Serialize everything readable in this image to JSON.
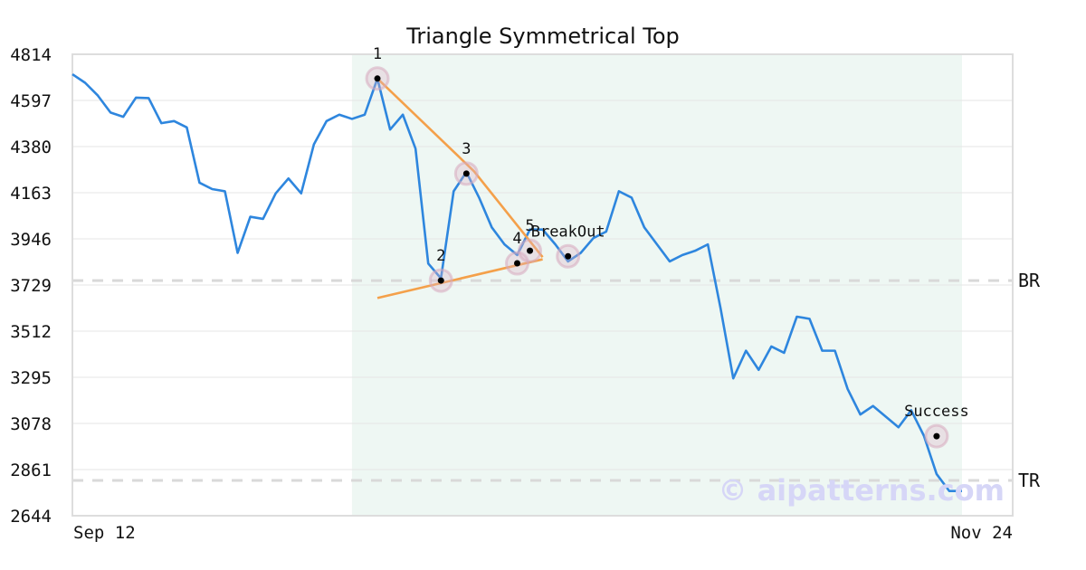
{
  "chart_data": {
    "type": "line",
    "title": "Triangle Symmetrical Top",
    "xlabel": "",
    "ylabel": "",
    "ylim": [
      2644,
      4814
    ],
    "y_ticks": [
      4814,
      4597,
      4380,
      4163,
      3946,
      3729,
      3512,
      3295,
      3078,
      2861,
      2644
    ],
    "x_tick_labels": [
      "Sep 12",
      "Nov 24"
    ],
    "grid": "horizontal",
    "series": [
      {
        "name": "",
        "color": "#2e86de",
        "x": [
          0,
          1,
          2,
          3,
          4,
          5,
          6,
          7,
          8,
          9,
          10,
          11,
          12,
          13,
          14,
          15,
          16,
          17,
          18,
          19,
          20,
          21,
          22,
          23,
          24,
          25,
          26,
          27,
          28,
          29,
          30,
          31,
          32,
          33,
          34,
          35,
          36,
          37,
          38,
          39,
          40,
          41,
          42,
          43,
          44,
          45,
          46,
          47,
          48,
          49,
          50,
          51,
          52,
          53,
          54,
          55,
          56,
          57,
          58,
          59,
          60,
          61,
          62,
          63,
          64,
          65,
          66,
          67,
          68,
          69,
          70
        ],
        "values": [
          4720,
          4680,
          4620,
          4540,
          4520,
          4610,
          4608,
          4490,
          4500,
          4470,
          4210,
          4180,
          4170,
          3880,
          4050,
          4040,
          4160,
          4230,
          4160,
          4390,
          4500,
          4530,
          4510,
          4530,
          4700,
          4460,
          4530,
          4370,
          3830,
          3760,
          4170,
          4260,
          4140,
          4000,
          3920,
          3870,
          3990,
          3990,
          3920,
          3840,
          3880,
          3950,
          3980,
          4170,
          4140,
          4000,
          3920,
          3840,
          3870,
          3890,
          3920,
          3620,
          3290,
          3420,
          3330,
          3440,
          3410,
          3580,
          3570,
          3420,
          3420,
          3240,
          3120,
          3160,
          3110,
          3060,
          3140,
          3020,
          2840,
          2760,
          2760
        ]
      }
    ],
    "shaded_region": {
      "x_start": 22,
      "x_end": 70,
      "color": "#eef7f3"
    },
    "trendlines": [
      {
        "color": "#f4a04a",
        "points": [
          [
            24,
            4700
          ],
          [
            31.6,
            4264
          ],
          [
            37,
            3860
          ]
        ]
      },
      {
        "color": "#f4a04a",
        "points": [
          [
            24,
            3668
          ],
          [
            37,
            3850
          ]
        ]
      }
    ],
    "pivots": [
      {
        "label": "1",
        "x": 24,
        "y": 4700
      },
      {
        "label": "2",
        "x": 29,
        "y": 3750
      },
      {
        "label": "3",
        "x": 31,
        "y": 4253
      },
      {
        "label": "4",
        "x": 35,
        "y": 3831
      },
      {
        "label": "5",
        "x": 36,
        "y": 3890
      },
      {
        "label": "BreakOut",
        "x": 39,
        "y": 3864
      },
      {
        "label": "Success",
        "x": 68,
        "y": 3018
      }
    ],
    "reference_lines": [
      {
        "label": "BR",
        "y": 3750
      },
      {
        "label": "TR",
        "y": 2810
      }
    ],
    "watermark": "© aipatterns.com"
  }
}
